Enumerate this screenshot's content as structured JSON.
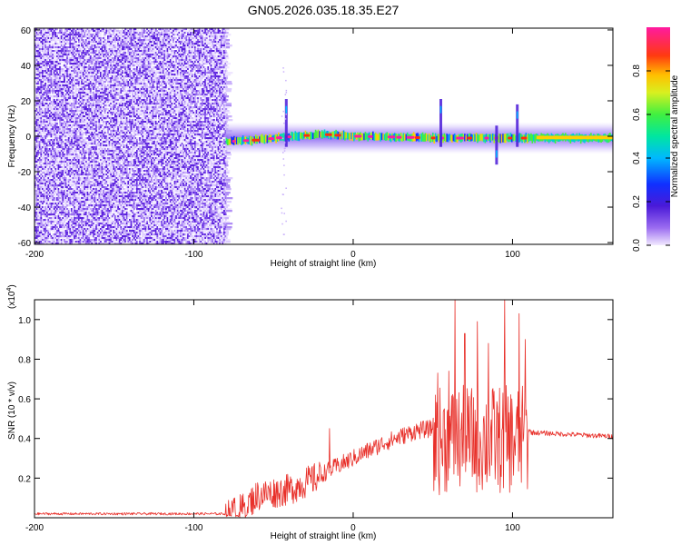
{
  "figure": {
    "title": "GN05.2026.035.18.35.E27"
  },
  "chart_data": [
    {
      "type": "heatmap",
      "name": "spectrogram",
      "xlabel": "Height of straight line (km)",
      "ylabel": "Frequency (Hz)",
      "xlim": [
        -200,
        163
      ],
      "ylim": [
        -61,
        61
      ],
      "xticks": [
        -200,
        -100,
        0,
        100
      ],
      "xtick_labels": [
        "-200",
        "-100",
        "0",
        "100"
      ],
      "yticks": [
        -60,
        -40,
        -20,
        0,
        20,
        40,
        60
      ],
      "ytick_labels": [
        "-60",
        "-40",
        "-20",
        "0",
        "20",
        "40",
        "60"
      ],
      "noise_region_x": [
        -200,
        -80
      ],
      "signal_band": {
        "x_start": -80,
        "x_end": 163,
        "center_freq_hz": [
          {
            "x": -80,
            "f": -3
          },
          {
            "x": -60,
            "f": -2
          },
          {
            "x": -40,
            "f": 0
          },
          {
            "x": -20,
            "f": 1
          },
          {
            "x": 0,
            "f": 0
          },
          {
            "x": 50,
            "f": -1
          },
          {
            "x": 100,
            "f": -1
          },
          {
            "x": 163,
            "f": -1
          }
        ]
      },
      "features": [
        {
          "x": -42,
          "f": 15,
          "desc": "upper streak"
        },
        {
          "x": 55,
          "f": 15,
          "desc": "spike"
        },
        {
          "x": 90,
          "f": -10,
          "desc": "spike"
        },
        {
          "x": 103,
          "f": 12,
          "desc": "spike"
        }
      ],
      "colorbar": {
        "label": "Normalized spectral amplitude",
        "range": [
          0,
          1
        ],
        "ticks": [
          0.0,
          0.2,
          0.4,
          0.6,
          0.8
        ],
        "tick_labels": [
          "0.0",
          "0.2",
          "0.4",
          "0.6",
          "0.8"
        ]
      }
    },
    {
      "type": "line",
      "name": "snr",
      "xlabel": "Height of straight line (km)",
      "ylabel": "SNR (10 * v/v)",
      "scale_label": "(x10",
      "scale_exp": "4",
      "scale_close": ")",
      "color": "#e8302a",
      "xlim": [
        -200,
        163
      ],
      "ylim": [
        0,
        1.1
      ],
      "xticks": [
        -200,
        -100,
        0,
        100
      ],
      "xtick_labels": [
        "-200",
        "-100",
        "0",
        "100"
      ],
      "yticks": [
        0.2,
        0.4,
        0.6,
        0.8,
        1.0
      ],
      "ytick_labels": [
        "0.2",
        "0.4",
        "0.6",
        "0.8",
        "1.0"
      ],
      "trend": [
        {
          "x": -200,
          "y": 0.02
        },
        {
          "x": -80,
          "y": 0.02
        },
        {
          "x": -70,
          "y": 0.05
        },
        {
          "x": -60,
          "y": 0.12
        },
        {
          "x": -40,
          "y": 0.15
        },
        {
          "x": -20,
          "y": 0.22
        },
        {
          "x": 0,
          "y": 0.3
        },
        {
          "x": 20,
          "y": 0.38
        },
        {
          "x": 40,
          "y": 0.44
        },
        {
          "x": 60,
          "y": 0.46
        },
        {
          "x": 108,
          "y": 0.46
        },
        {
          "x": 112,
          "y": 0.43
        },
        {
          "x": 163,
          "y": 0.41
        }
      ],
      "peaks": [
        {
          "x": -15,
          "y": 0.45
        },
        {
          "x": 53,
          "y": 0.73
        },
        {
          "x": 60,
          "y": 0.74
        },
        {
          "x": 64,
          "y": 1.1
        },
        {
          "x": 70,
          "y": 0.93
        },
        {
          "x": 78,
          "y": 0.99
        },
        {
          "x": 85,
          "y": 0.88
        },
        {
          "x": 95,
          "y": 1.1
        },
        {
          "x": 104,
          "y": 1.03
        },
        {
          "x": 108,
          "y": 0.9
        }
      ]
    }
  ]
}
